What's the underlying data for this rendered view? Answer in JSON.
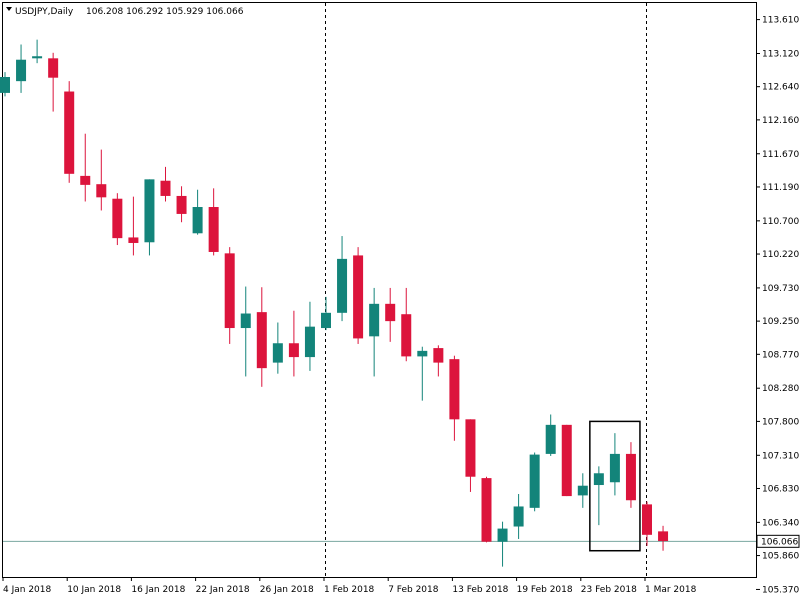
{
  "header": {
    "symbol": "USDJPY,Daily",
    "ohlc": "106.208 106.292 105.929 106.066"
  },
  "current_price_label": "106.066",
  "colors": {
    "bull": "#13847a",
    "bear": "#dc143c",
    "wick": "#13847a",
    "current_line": "#7aa7a0",
    "axis": "#000000",
    "highlight_box": "#000000"
  },
  "chart_data": {
    "type": "candlestick",
    "ylim": [
      105.55,
      113.85
    ],
    "yticks": [
      "113.610",
      "113.120",
      "112.640",
      "112.160",
      "111.670",
      "111.190",
      "110.700",
      "110.220",
      "109.730",
      "109.250",
      "108.770",
      "108.280",
      "107.800",
      "107.310",
      "106.830",
      "106.340",
      "105.860",
      "105.370"
    ],
    "xticks": [
      {
        "label": "4 Jan 2018",
        "index": 0
      },
      {
        "label": "10 Jan 2018",
        "index": 4
      },
      {
        "label": "16 Jan 2018",
        "index": 8
      },
      {
        "label": "22 Jan 2018",
        "index": 12
      },
      {
        "label": "26 Jan 2018",
        "index": 16
      },
      {
        "label": "1 Feb 2018",
        "index": 20
      },
      {
        "label": "7 Feb 2018",
        "index": 24
      },
      {
        "label": "13 Feb 2018",
        "index": 28
      },
      {
        "label": "19 Feb 2018",
        "index": 32
      },
      {
        "label": "23 Feb 2018",
        "index": 36
      },
      {
        "label": "1 Mar 2018",
        "index": 40
      }
    ],
    "separators": [
      20,
      40
    ],
    "highlight": {
      "from": 37,
      "to": 39,
      "top": 107.8,
      "bottom": 105.93
    },
    "current_price": 106.066,
    "candles": [
      {
        "o": 112.55,
        "h": 112.85,
        "l": 112.5,
        "c": 112.78
      },
      {
        "o": 112.72,
        "h": 113.25,
        "l": 112.55,
        "c": 113.03
      },
      {
        "o": 113.05,
        "h": 113.32,
        "l": 112.98,
        "c": 113.08
      },
      {
        "o": 113.05,
        "h": 113.13,
        "l": 112.28,
        "c": 112.77
      },
      {
        "o": 112.57,
        "h": 112.72,
        "l": 111.25,
        "c": 111.38
      },
      {
        "o": 111.35,
        "h": 111.96,
        "l": 110.98,
        "c": 111.22
      },
      {
        "o": 111.23,
        "h": 111.73,
        "l": 110.85,
        "c": 111.04
      },
      {
        "o": 111.02,
        "h": 111.1,
        "l": 110.35,
        "c": 110.45
      },
      {
        "o": 110.46,
        "h": 111.05,
        "l": 110.2,
        "c": 110.38
      },
      {
        "o": 110.39,
        "h": 111.3,
        "l": 110.2,
        "c": 111.3
      },
      {
        "o": 111.28,
        "h": 111.48,
        "l": 110.98,
        "c": 111.06
      },
      {
        "o": 111.06,
        "h": 111.2,
        "l": 110.68,
        "c": 110.8
      },
      {
        "o": 110.52,
        "h": 111.15,
        "l": 110.5,
        "c": 110.9
      },
      {
        "o": 110.9,
        "h": 111.17,
        "l": 110.2,
        "c": 110.25
      },
      {
        "o": 110.23,
        "h": 110.32,
        "l": 108.92,
        "c": 109.15
      },
      {
        "o": 109.15,
        "h": 109.75,
        "l": 108.45,
        "c": 109.36
      },
      {
        "o": 109.38,
        "h": 109.74,
        "l": 108.3,
        "c": 108.57
      },
      {
        "o": 108.65,
        "h": 109.23,
        "l": 108.49,
        "c": 108.93
      },
      {
        "o": 108.93,
        "h": 109.4,
        "l": 108.45,
        "c": 108.73
      },
      {
        "o": 108.73,
        "h": 109.53,
        "l": 108.53,
        "c": 109.17
      },
      {
        "o": 109.15,
        "h": 109.6,
        "l": 109.12,
        "c": 109.37
      },
      {
        "o": 109.37,
        "h": 110.48,
        "l": 109.25,
        "c": 110.15
      },
      {
        "o": 110.2,
        "h": 110.32,
        "l": 108.92,
        "c": 109.0
      },
      {
        "o": 109.03,
        "h": 109.73,
        "l": 108.45,
        "c": 109.5
      },
      {
        "o": 109.5,
        "h": 109.73,
        "l": 108.95,
        "c": 109.25
      },
      {
        "o": 109.35,
        "h": 109.73,
        "l": 108.67,
        "c": 108.74
      },
      {
        "o": 108.74,
        "h": 108.88,
        "l": 108.1,
        "c": 108.82
      },
      {
        "o": 108.86,
        "h": 108.9,
        "l": 108.45,
        "c": 108.65
      },
      {
        "o": 108.7,
        "h": 108.75,
        "l": 107.52,
        "c": 107.83
      },
      {
        "o": 107.83,
        "h": 107.83,
        "l": 106.78,
        "c": 107.0
      },
      {
        "o": 106.98,
        "h": 107.0,
        "l": 106.05,
        "c": 106.06
      },
      {
        "o": 106.06,
        "h": 106.35,
        "l": 105.7,
        "c": 106.25
      },
      {
        "o": 106.28,
        "h": 106.75,
        "l": 106.1,
        "c": 106.57
      },
      {
        "o": 106.55,
        "h": 107.35,
        "l": 106.5,
        "c": 107.32
      },
      {
        "o": 107.33,
        "h": 107.9,
        "l": 107.3,
        "c": 107.75
      },
      {
        "o": 107.75,
        "h": 107.75,
        "l": 106.72,
        "c": 106.72
      },
      {
        "o": 106.73,
        "h": 107.05,
        "l": 106.55,
        "c": 106.87
      },
      {
        "o": 106.88,
        "h": 107.15,
        "l": 106.3,
        "c": 107.05
      },
      {
        "o": 106.92,
        "h": 107.63,
        "l": 106.73,
        "c": 107.33
      },
      {
        "o": 107.33,
        "h": 107.5,
        "l": 106.55,
        "c": 106.66
      },
      {
        "o": 106.6,
        "h": 106.64,
        "l": 106.0,
        "c": 106.16
      },
      {
        "o": 106.21,
        "h": 106.29,
        "l": 105.93,
        "c": 106.07
      }
    ]
  }
}
